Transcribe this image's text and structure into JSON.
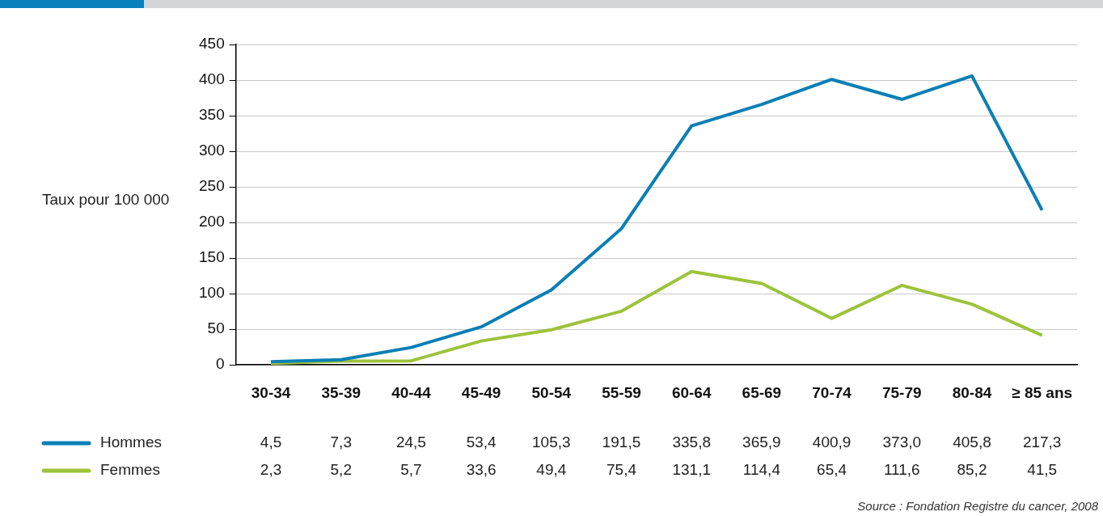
{
  "chart_data": {
    "type": "line",
    "ylabel": "Taux pour 100 000",
    "categories": [
      "30-34",
      "35-39",
      "40-44",
      "45-49",
      "50-54",
      "55-59",
      "60-64",
      "65-69",
      "70-74",
      "75-79",
      "80-84",
      "≥ 85 ans"
    ],
    "series": [
      {
        "name": "Hommes",
        "color": "#0a7fb5",
        "values": [
          4.5,
          7.3,
          24.5,
          53.4,
          105.3,
          191.5,
          335.8,
          365.9,
          400.9,
          373.0,
          405.8,
          217.3
        ],
        "value_labels": [
          "4,5",
          "7,3",
          "24,5",
          "53,4",
          "105,3",
          "191,5",
          "335,8",
          "365,9",
          "400,9",
          "373,0",
          "405,8",
          "217,3"
        ]
      },
      {
        "name": "Femmes",
        "color": "#9dc33b",
        "values": [
          2.3,
          5.2,
          5.7,
          33.6,
          49.4,
          75.4,
          131.1,
          114.4,
          65.4,
          111.6,
          85.2,
          41.5
        ],
        "value_labels": [
          "2,3",
          "5,2",
          "5,7",
          "33,6",
          "49,4",
          "75,4",
          "131,1",
          "114,4",
          "65,4",
          "111,6",
          "85,2",
          "41,5"
        ]
      }
    ],
    "ylim": [
      0,
      450
    ],
    "yticks": [
      0,
      50,
      100,
      150,
      200,
      250,
      300,
      350,
      400,
      450
    ],
    "grid": "y",
    "legend": "bottom left",
    "marker": "none",
    "line_style": "solid",
    "annotations": [
      "Source : Fondation Registre du cancer, 2008"
    ]
  }
}
